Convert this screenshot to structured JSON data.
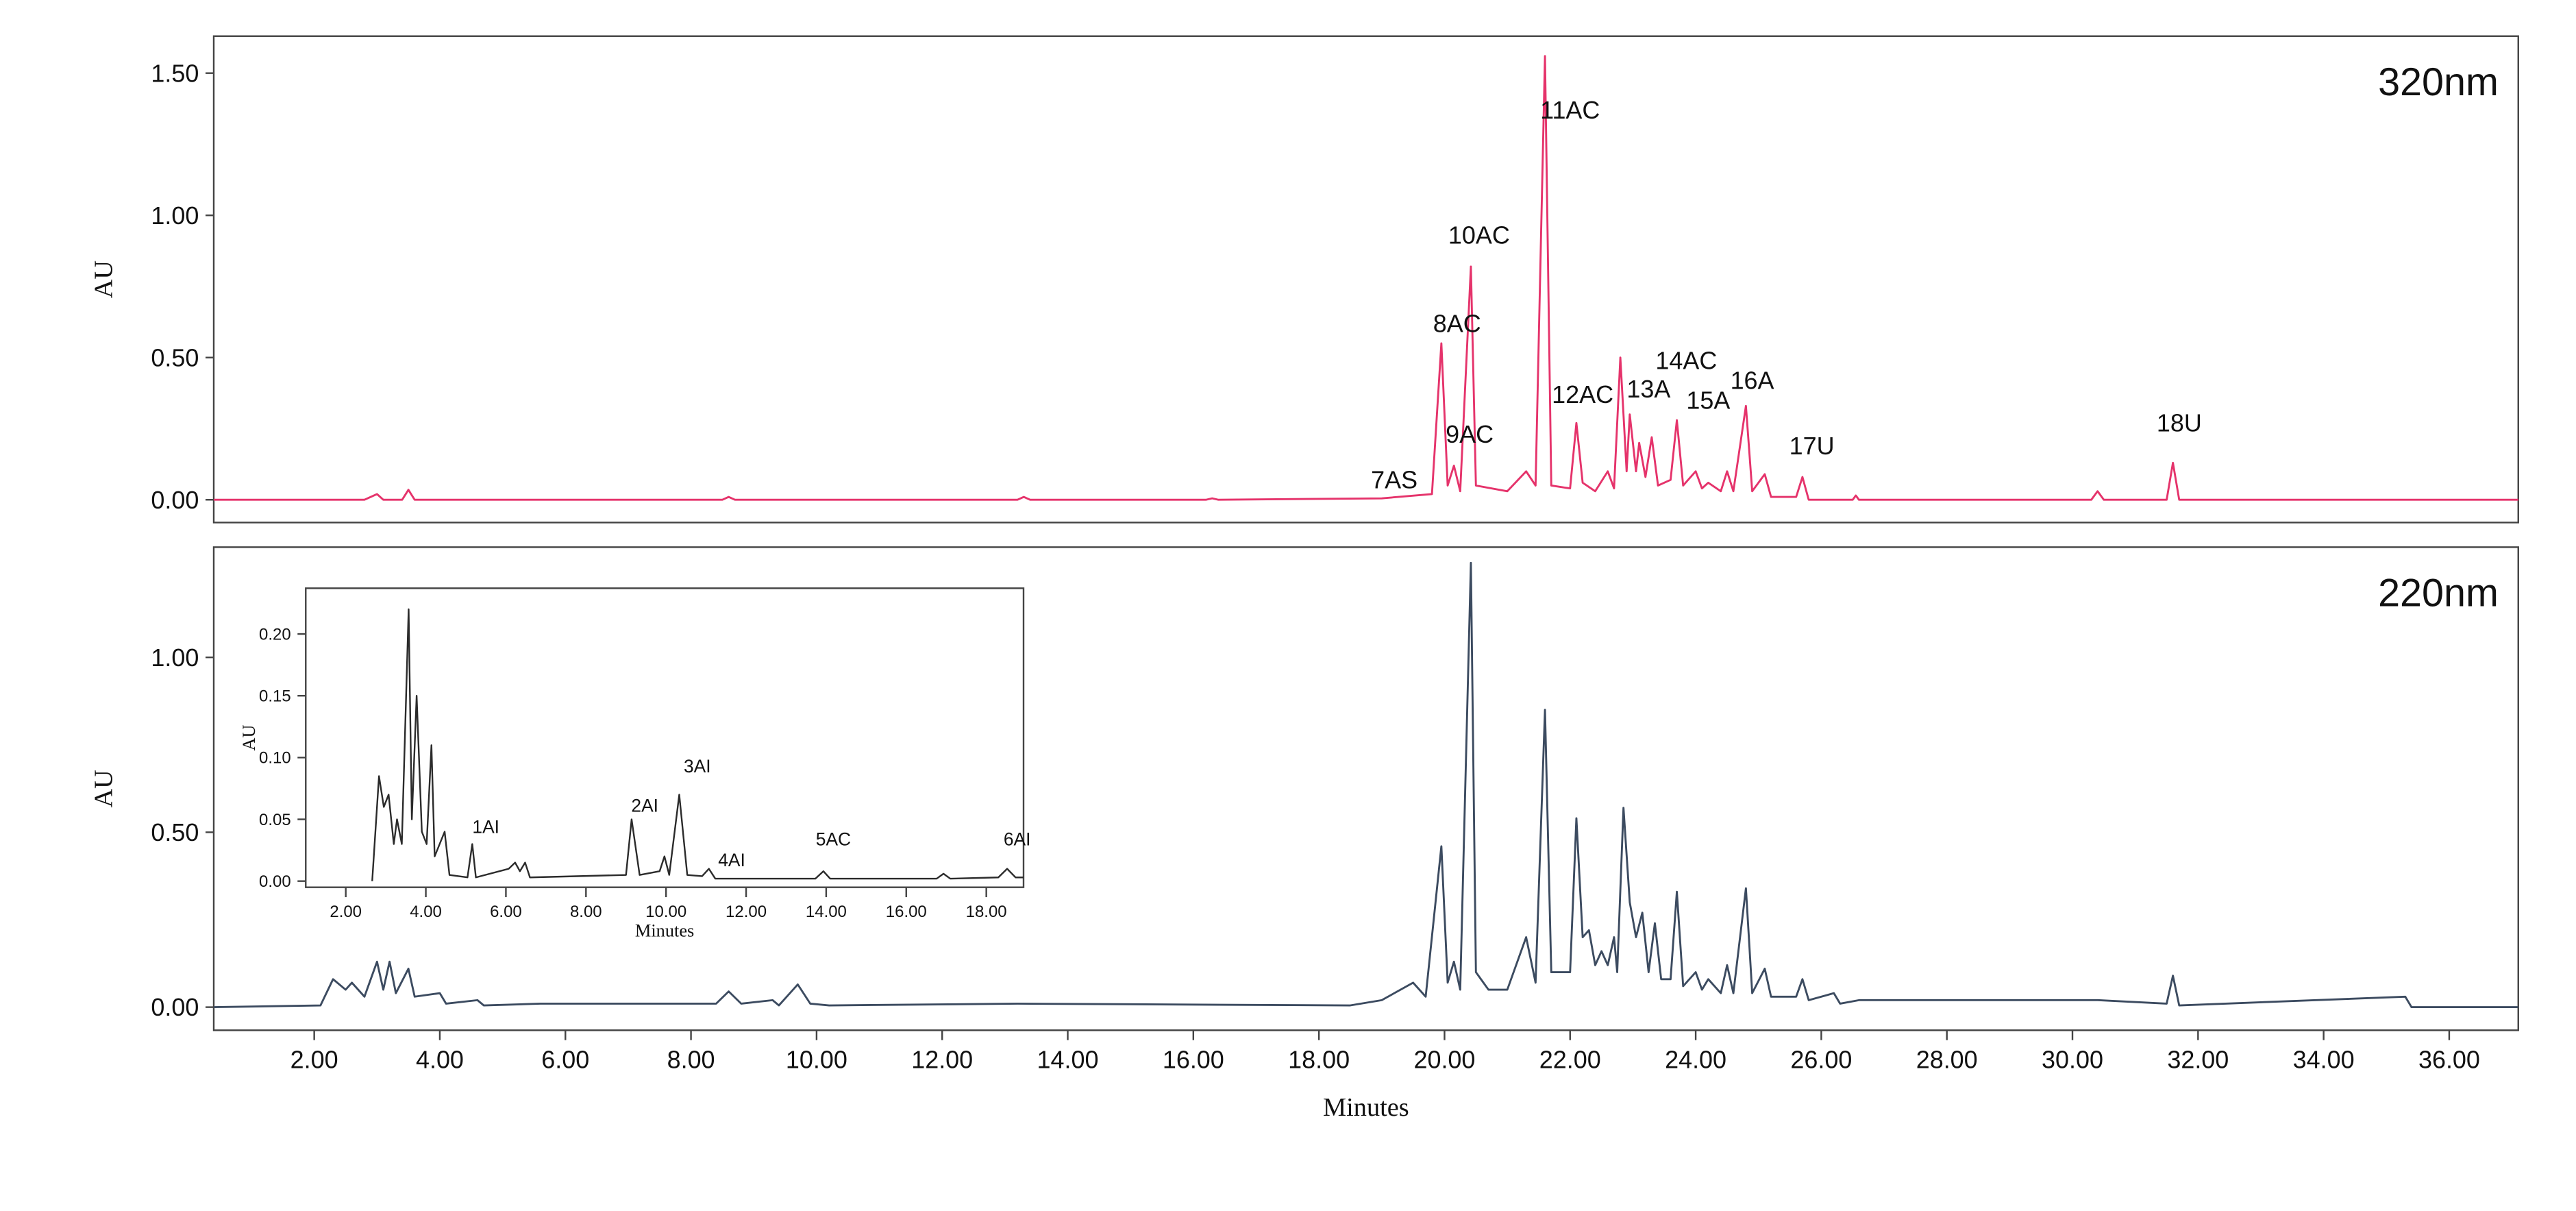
{
  "chart_data": [
    {
      "type": "line",
      "label": "320nm",
      "y_label": "AU",
      "color": "#e5336b",
      "x": [
        0.4,
        2.8,
        3.0,
        3.1,
        3.4,
        3.5,
        3.6,
        8.5,
        8.6,
        8.7,
        13.2,
        13.3,
        13.4,
        16.2,
        16.3,
        16.4,
        19.0,
        19.8,
        19.95,
        20.05,
        20.15,
        20.25,
        20.42,
        20.5,
        21.0,
        21.3,
        21.45,
        21.6,
        21.7,
        22.0,
        22.1,
        22.2,
        22.4,
        22.6,
        22.7,
        22.8,
        22.9,
        22.95,
        23.05,
        23.1,
        23.2,
        23.3,
        23.4,
        23.6,
        23.7,
        23.8,
        24.0,
        24.1,
        24.2,
        24.4,
        24.5,
        24.6,
        24.8,
        24.9,
        25.1,
        25.2,
        25.6,
        25.7,
        25.8,
        26.5,
        26.55,
        26.6,
        30.3,
        30.4,
        30.5,
        31.5,
        31.6,
        31.7,
        37.1
      ],
      "values": [
        0,
        0,
        0.02,
        0,
        0,
        0.035,
        0,
        0,
        0.01,
        0,
        0,
        0.01,
        0,
        0,
        0.005,
        0,
        0.005,
        0.02,
        0.55,
        0.05,
        0.12,
        0.03,
        0.82,
        0.05,
        0.03,
        0.1,
        0.05,
        1.56,
        0.05,
        0.04,
        0.27,
        0.06,
        0.03,
        0.1,
        0.04,
        0.5,
        0.1,
        0.3,
        0.1,
        0.2,
        0.08,
        0.22,
        0.05,
        0.07,
        0.28,
        0.05,
        0.1,
        0.04,
        0.06,
        0.03,
        0.1,
        0.03,
        0.33,
        0.03,
        0.09,
        0.01,
        0.01,
        0.08,
        0,
        0,
        0.015,
        0,
        0,
        0.03,
        0,
        0,
        0.13,
        0,
        0
      ],
      "xlim": [
        0.4,
        37.1
      ],
      "ylim": [
        -0.08,
        1.63
      ],
      "yticks": [
        {
          "value": 0,
          "label": "0.00"
        },
        {
          "value": 0.5,
          "label": "0.50"
        },
        {
          "value": 1,
          "label": "1.00"
        },
        {
          "value": 1.5,
          "label": "1.50"
        }
      ],
      "annotations": [
        {
          "text": "7AS",
          "x": 19.2,
          "y": 0.04
        },
        {
          "text": "8AC",
          "x": 20.2,
          "y": 0.59
        },
        {
          "text": "9AC",
          "x": 20.4,
          "y": 0.2
        },
        {
          "text": "10AC",
          "x": 20.55,
          "y": 0.9
        },
        {
          "text": "11AC",
          "x": 22.0,
          "y": 1.34
        },
        {
          "text": "12AC",
          "x": 22.2,
          "y": 0.34
        },
        {
          "text": "13A",
          "x": 23.25,
          "y": 0.36
        },
        {
          "text": "14AC",
          "x": 23.85,
          "y": 0.46
        },
        {
          "text": "15A",
          "x": 24.2,
          "y": 0.32
        },
        {
          "text": "16A",
          "x": 24.9,
          "y": 0.39
        },
        {
          "text": "17U",
          "x": 25.85,
          "y": 0.16
        },
        {
          "text": "18U",
          "x": 31.7,
          "y": 0.24
        }
      ]
    },
    {
      "type": "line",
      "label": "220nm",
      "y_label": "AU",
      "x_label": "Minutes",
      "color": "#3c4b60",
      "x": [
        0.4,
        2.1,
        2.3,
        2.5,
        2.6,
        2.8,
        3.0,
        3.1,
        3.2,
        3.3,
        3.5,
        3.6,
        4.0,
        4.1,
        4.6,
        4.7,
        5.6,
        8.4,
        8.6,
        8.8,
        9.3,
        9.4,
        9.7,
        9.9,
        10.2,
        13.2,
        18.5,
        19.0,
        19.5,
        19.7,
        19.95,
        20.05,
        20.15,
        20.25,
        20.42,
        20.5,
        20.7,
        21.0,
        21.3,
        21.45,
        21.6,
        21.7,
        22.0,
        22.1,
        22.2,
        22.3,
        22.4,
        22.5,
        22.6,
        22.7,
        22.75,
        22.85,
        22.95,
        23.05,
        23.15,
        23.25,
        23.35,
        23.45,
        23.6,
        23.7,
        23.8,
        24.0,
        24.1,
        24.2,
        24.4,
        24.5,
        24.6,
        24.8,
        24.9,
        25.1,
        25.2,
        25.6,
        25.7,
        25.8,
        26.2,
        26.3,
        26.6,
        27.3,
        30.4,
        31.5,
        31.6,
        31.7,
        35.3,
        35.4,
        37.1
      ],
      "values": [
        0,
        0.005,
        0.08,
        0.05,
        0.07,
        0.03,
        0.13,
        0.05,
        0.13,
        0.04,
        0.11,
        0.03,
        0.04,
        0.01,
        0.02,
        0.005,
        0.01,
        0.01,
        0.045,
        0.01,
        0.02,
        0.005,
        0.065,
        0.01,
        0.005,
        0.01,
        0.005,
        0.02,
        0.07,
        0.03,
        0.46,
        0.07,
        0.13,
        0.05,
        1.27,
        0.1,
        0.05,
        0.05,
        0.2,
        0.07,
        0.85,
        0.1,
        0.1,
        0.54,
        0.2,
        0.22,
        0.12,
        0.16,
        0.12,
        0.2,
        0.1,
        0.57,
        0.3,
        0.2,
        0.27,
        0.1,
        0.24,
        0.08,
        0.08,
        0.33,
        0.06,
        0.1,
        0.05,
        0.08,
        0.04,
        0.12,
        0.04,
        0.34,
        0.04,
        0.11,
        0.03,
        0.03,
        0.08,
        0.02,
        0.04,
        0.01,
        0.02,
        0.02,
        0.02,
        0.01,
        0.09,
        0.005,
        0.03,
        0,
        0
      ],
      "xlim": [
        0.4,
        37.1
      ],
      "ylim": [
        -0.066,
        1.315
      ],
      "xticks": [
        {
          "value": 2,
          "label": "2.00"
        },
        {
          "value": 4,
          "label": "4.00"
        },
        {
          "value": 6,
          "label": "6.00"
        },
        {
          "value": 8,
          "label": "8.00"
        },
        {
          "value": 10,
          "label": "10.00"
        },
        {
          "value": 12,
          "label": "12.00"
        },
        {
          "value": 14,
          "label": "14.00"
        },
        {
          "value": 16,
          "label": "16.00"
        },
        {
          "value": 18,
          "label": "18.00"
        },
        {
          "value": 20,
          "label": "20.00"
        },
        {
          "value": 22,
          "label": "22.00"
        },
        {
          "value": 24,
          "label": "24.00"
        },
        {
          "value": 26,
          "label": "26.00"
        },
        {
          "value": 28,
          "label": "28.00"
        },
        {
          "value": 30,
          "label": "30.00"
        },
        {
          "value": 32,
          "label": "32.00"
        },
        {
          "value": 34,
          "label": "34.00"
        },
        {
          "value": 36,
          "label": "36.00"
        }
      ],
      "yticks": [
        {
          "value": 0,
          "label": "0.00"
        },
        {
          "value": 0.5,
          "label": "0.50"
        },
        {
          "value": 1,
          "label": "1.00"
        }
      ]
    },
    {
      "type": "line",
      "y_label": "AU",
      "x_label": "Minutes",
      "color": "#2b2b2b",
      "x": [
        2.66,
        2.83,
        2.95,
        3.07,
        3.2,
        3.28,
        3.4,
        3.57,
        3.65,
        3.77,
        3.9,
        4.02,
        4.14,
        4.22,
        4.47,
        4.59,
        5.04,
        5.16,
        5.25,
        6.07,
        6.23,
        6.35,
        6.48,
        6.6,
        9.0,
        9.14,
        9.34,
        9.84,
        9.96,
        10.08,
        10.33,
        10.53,
        10.9,
        11.07,
        11.23,
        13.73,
        13.93,
        14.1,
        16.76,
        16.93,
        17.1,
        18.3,
        18.52,
        18.73,
        18.93
      ],
      "values": [
        0,
        0.085,
        0.06,
        0.07,
        0.03,
        0.05,
        0.03,
        0.22,
        0.05,
        0.15,
        0.04,
        0.03,
        0.11,
        0.02,
        0.04,
        0.005,
        0.003,
        0.03,
        0.003,
        0.01,
        0.015,
        0.008,
        0.015,
        0.003,
        0.005,
        0.05,
        0.005,
        0.008,
        0.02,
        0.005,
        0.07,
        0.005,
        0.004,
        0.01,
        0.002,
        0.002,
        0.008,
        0.002,
        0.002,
        0.006,
        0.002,
        0.003,
        0.01,
        0.003,
        0.003
      ],
      "xlim": [
        1.0,
        18.93
      ],
      "ylim": [
        -0.005,
        0.237
      ],
      "xticks": [
        {
          "value": 2,
          "label": "2.00"
        },
        {
          "value": 4,
          "label": "4.00"
        },
        {
          "value": 6,
          "label": "6.00"
        },
        {
          "value": 8,
          "label": "8.00"
        },
        {
          "value": 10,
          "label": "10.00"
        },
        {
          "value": 12,
          "label": "12.00"
        },
        {
          "value": 14,
          "label": "14.00"
        },
        {
          "value": 16,
          "label": "16.00"
        },
        {
          "value": 18,
          "label": "18.00"
        }
      ],
      "yticks": [
        {
          "value": 0,
          "label": "0.00"
        },
        {
          "value": 0.05,
          "label": "0.05"
        },
        {
          "value": 0.1,
          "label": "0.10"
        },
        {
          "value": 0.15,
          "label": "0.15"
        },
        {
          "value": 0.2,
          "label": "0.20"
        }
      ],
      "annotations": [
        {
          "text": "1AI",
          "x": 5.5,
          "y": 0.039
        },
        {
          "text": "2AI",
          "x": 9.47,
          "y": 0.056
        },
        {
          "text": "3AI",
          "x": 10.78,
          "y": 0.088
        },
        {
          "text": "4AI",
          "x": 11.64,
          "y": 0.012
        },
        {
          "text": "5AC",
          "x": 14.18,
          "y": 0.029
        },
        {
          "text": "6AI",
          "x": 18.77,
          "y": 0.029
        }
      ]
    }
  ]
}
